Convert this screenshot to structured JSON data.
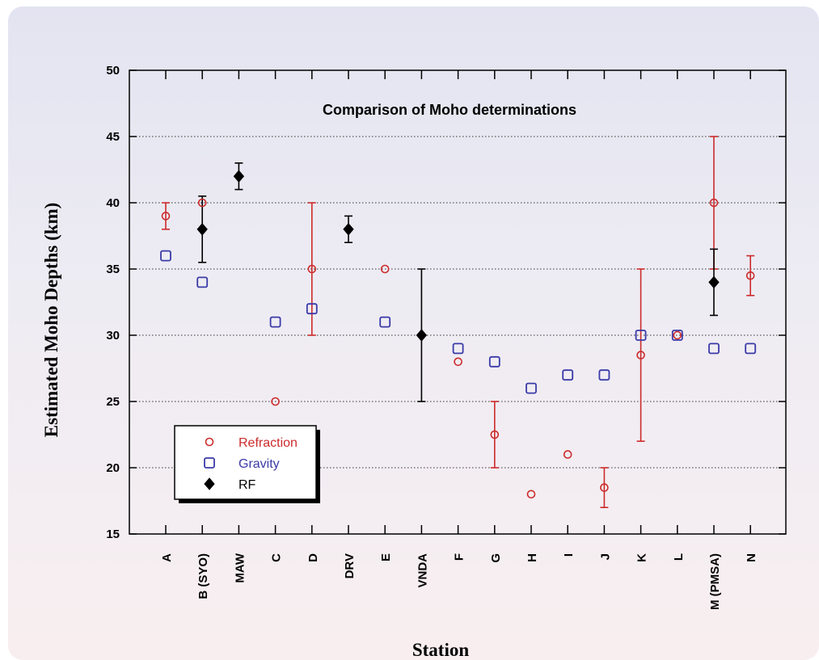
{
  "chart_data": {
    "type": "scatter",
    "title": "Comparison of Moho determinations",
    "xlabel": "Station",
    "ylabel": "Estimated Moho Depths (km)",
    "ylim": [
      15,
      50
    ],
    "yticks": [
      15,
      20,
      25,
      30,
      35,
      40,
      45,
      50
    ],
    "grid": "horizontal dotted",
    "legend_position": "lower-left",
    "categories": [
      "A",
      "B (SYO)",
      "MAW",
      "C",
      "D",
      "DRV",
      "E",
      "VNDA",
      "F",
      "G",
      "H",
      "I",
      "J",
      "K",
      "L",
      "M (PMSA)",
      "N"
    ],
    "series": [
      {
        "name": "Refraction",
        "marker": "circle",
        "color": "#cc2b2b",
        "points": [
          {
            "x": "A",
            "y": 39,
            "lo": 38,
            "hi": 40
          },
          {
            "x": "B (SYO)",
            "y": 40
          },
          {
            "x": "C",
            "y": 25
          },
          {
            "x": "D",
            "y": 35,
            "lo": 30,
            "hi": 40
          },
          {
            "x": "E",
            "y": 35
          },
          {
            "x": "F",
            "y": 28
          },
          {
            "x": "G",
            "y": 22.5,
            "lo": 20,
            "hi": 25
          },
          {
            "x": "H",
            "y": 18
          },
          {
            "x": "I",
            "y": 21
          },
          {
            "x": "J",
            "y": 18.5,
            "lo": 17,
            "hi": 20
          },
          {
            "x": "K",
            "y": 28.5,
            "lo": 22,
            "hi": 35
          },
          {
            "x": "L",
            "y": 30
          },
          {
            "x": "M (PMSA)",
            "y": 40,
            "lo": 35,
            "hi": 45
          },
          {
            "x": "N",
            "y": 34.5,
            "lo": 33,
            "hi": 36
          }
        ]
      },
      {
        "name": "Gravity",
        "marker": "square",
        "color": "#3a3aa8",
        "points": [
          {
            "x": "A",
            "y": 36
          },
          {
            "x": "B (SYO)",
            "y": 34
          },
          {
            "x": "C",
            "y": 31
          },
          {
            "x": "D",
            "y": 32
          },
          {
            "x": "E",
            "y": 31
          },
          {
            "x": "F",
            "y": 29
          },
          {
            "x": "G",
            "y": 28
          },
          {
            "x": "H",
            "y": 26
          },
          {
            "x": "I",
            "y": 27
          },
          {
            "x": "J",
            "y": 27
          },
          {
            "x": "K",
            "y": 30
          },
          {
            "x": "L",
            "y": 30
          },
          {
            "x": "M (PMSA)",
            "y": 29
          },
          {
            "x": "N",
            "y": 29
          }
        ]
      },
      {
        "name": "RF",
        "marker": "diamond",
        "color": "#000000",
        "points": [
          {
            "x": "B (SYO)",
            "y": 38,
            "lo": 35.5,
            "hi": 40.5
          },
          {
            "x": "MAW",
            "y": 42,
            "lo": 41,
            "hi": 43
          },
          {
            "x": "DRV",
            "y": 38,
            "lo": 37,
            "hi": 39
          },
          {
            "x": "VNDA",
            "y": 30,
            "lo": 25,
            "hi": 35
          },
          {
            "x": "M (PMSA)",
            "y": 34,
            "lo": 31.5,
            "hi": 36.5
          }
        ]
      }
    ]
  }
}
